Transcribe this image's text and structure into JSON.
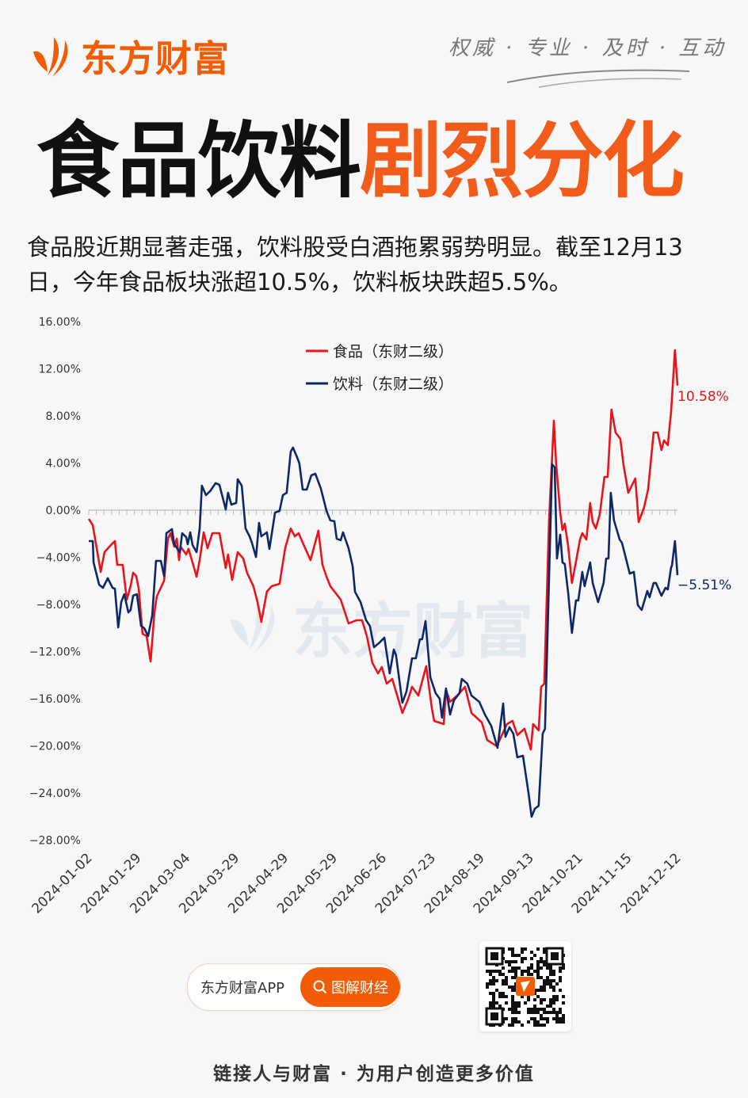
{
  "header": {
    "brand": "东方财富",
    "slogan": "权威 · 专业 · 及时 · 互动"
  },
  "title": {
    "part1": "食品饮料",
    "part2": "剧烈分化"
  },
  "subtitle": "食品股近期显著走强，饮料股受白酒拖累弱势明显。截至12月13日，今年食品板块涨超10.5%，饮料板块跌超5.5%。",
  "watermark": "东方财富",
  "footer": {
    "app_label": "东方财富APP",
    "search_label": "图解财经",
    "tagline": "链接人与财富 · 为用户创造更多价值"
  },
  "colors": {
    "accent": "#f25c05",
    "food": "#e8141b",
    "beverage": "#0d2868"
  },
  "chart_data": {
    "type": "line",
    "title": "",
    "xlabel": "",
    "ylabel": "",
    "ylim": [
      -28,
      16
    ],
    "xlim": [
      0,
      232
    ],
    "x_unit": "trading-day index since 2024-01-02",
    "y_ticks": [
      "16.00%",
      "12.00%",
      "8.00%",
      "4.00%",
      "0.00%",
      "−4.00%",
      "−8.00%",
      "−12.00%",
      "−16.00%",
      "−20.00%",
      "−24.00%",
      "−28.00%"
    ],
    "y_tick_values": [
      16,
      12,
      8,
      4,
      0,
      -4,
      -8,
      -12,
      -16,
      -20,
      -24,
      -28
    ],
    "x_ticks": [
      "2024-01-02",
      "2024-01-29",
      "2024-03-04",
      "2024-03-29",
      "2024-04-29",
      "2024-05-29",
      "2024-06-26",
      "2024-07-23",
      "2024-08-19",
      "2024-09-13",
      "2024-10-21",
      "2024-11-15",
      "2024-12-12"
    ],
    "legend_position": "top-center",
    "series": [
      {
        "name": "食品（东财二级）",
        "end_label": "10.58%",
        "x": [
          0,
          1.6,
          4.7,
          6.2,
          8.7,
          10.3,
          11.2,
          13.4,
          15.0,
          16.5,
          17.5,
          18.7,
          19.7,
          21.2,
          22.8,
          24.4,
          25.9,
          26.8,
          29.7,
          31.2,
          32.2,
          33.7,
          34.7,
          35.6,
          36.2,
          38.4,
          39.3,
          40.9,
          42.5,
          43.7,
          45.3,
          46.8,
          48.7,
          51.5,
          54.0,
          54.9,
          56.5,
          58.7,
          60.9,
          62.4,
          64.9,
          66.5,
          68.0,
          70.2,
          72.1,
          75.2,
          77.4,
          79.6,
          81.2,
          82.7,
          84.6,
          87.4,
          90.5,
          92.1,
          93.7,
          95.2,
          99.3,
          102.4,
          105.5,
          107.7,
          109.6,
          111.8,
          114.0,
          115.5,
          117.4,
          119.6,
          123.6,
          125.8,
          127.4,
          129.9,
          133.0,
          135.2,
          136.1,
          139.9,
          140.8,
          142.4,
          145.2,
          148.3,
          150.8,
          154.9,
          157.0,
          160.8,
          164.8,
          167.0,
          168.9,
          171.7,
          174.2,
          175.1,
          177.3,
          178.3,
          179.5,
          181.4,
          183.3,
          184.2,
          185.8,
          186.7,
          187.6,
          188.9,
          190.4,
          192.0,
          193.6,
          194.5,
          196.1,
          197.6,
          198.6,
          199.8,
          201.4,
          203.2,
          204.5,
          206.0,
          207.6,
          209.5,
          210.7,
          212.6,
          215.4,
          216.7,
          218.8,
          220.4,
          222.6,
          224.2,
          225.7,
          226.7,
          228.2,
          229.5,
          231.0,
          232.0
        ],
        "values": [
          -0.74,
          -1.28,
          -5.24,
          -3.56,
          -2.96,
          -2.62,
          -4.64,
          -4.64,
          -7.6,
          -6.45,
          -5.31,
          -5.58,
          -6.66,
          -10.49,
          -10.69,
          -12.84,
          -8.67,
          -7.33,
          -5.98,
          -2.42,
          -1.95,
          -3.09,
          -2.42,
          -4.24,
          -3.09,
          -3.76,
          -3.29,
          -4.44,
          -5.65,
          -4.24,
          -1.88,
          -3.23,
          -1.95,
          -1.95,
          -4.91,
          -3.76,
          -5.92,
          -3.56,
          -4.1,
          -5.31,
          -6.45,
          -7.8,
          -9.48,
          -6.92,
          -6.45,
          -6.25,
          -3.23,
          -1.55,
          -2.22,
          -1.95,
          -2.89,
          -4.24,
          -1.75,
          -4.64,
          -5.65,
          -6.45,
          -7.6,
          -9.61,
          -9.34,
          -9.34,
          -10.69,
          -12.97,
          -13.85,
          -13.31,
          -14.72,
          -14.32,
          -17.21,
          -16.07,
          -14.99,
          -15.73,
          -13.24,
          -16.81,
          -17.88,
          -18.15,
          -15.26,
          -16.27,
          -15.73,
          -14.99,
          -17.21,
          -18.02,
          -19.5,
          -20.03,
          -18.15,
          -17.88,
          -19.09,
          -18.55,
          -20.3,
          -18.15,
          -18.69,
          -14.99,
          -14.72,
          -0.87,
          7.6,
          3.9,
          -0.2,
          -1.68,
          -1.14,
          -3.03,
          -6.18,
          -4.37,
          -2.49,
          -1.95,
          -2.49,
          0.61,
          -1.01,
          -1.55,
          -0.34,
          2.82,
          2.82,
          8.54,
          6.59,
          6.05,
          3.9,
          1.48,
          2.69,
          -1.01,
          0.2,
          1.75,
          6.59,
          6.59,
          5.11,
          5.92,
          5.51,
          8.4,
          13.58,
          10.58
        ]
      },
      {
        "name": "饮料（东财二级）",
        "end_label": "−5.51%",
        "x": [
          0,
          1.6,
          1.9,
          4.1,
          5.6,
          7.5,
          9.4,
          10.3,
          11.6,
          12.8,
          14.0,
          15.6,
          16.5,
          17.5,
          19.0,
          20.6,
          21.9,
          23.4,
          25.0,
          26.5,
          28.4,
          29.7,
          30.6,
          32.8,
          33.7,
          35.9,
          36.8,
          38.4,
          39.0,
          40.0,
          40.9,
          42.5,
          43.7,
          44.6,
          46.2,
          47.8,
          50.0,
          51.5,
          54.0,
          54.9,
          56.2,
          58.1,
          58.7,
          60.3,
          61.8,
          63.4,
          64.3,
          65.9,
          67.1,
          68.0,
          70.2,
          71.2,
          73.4,
          75.2,
          76.5,
          78.0,
          79.6,
          80.5,
          82.1,
          83.0,
          84.3,
          85.9,
          87.7,
          89.3,
          91.5,
          93.7,
          95.2,
          96.8,
          97.7,
          99.3,
          100.2,
          102.4,
          104.0,
          104.9,
          107.1,
          109.3,
          110.8,
          112.4,
          114.3,
          116.5,
          118.6,
          120.2,
          121.1,
          123.6,
          125.2,
          127.4,
          128.9,
          130.5,
          131.4,
          132.7,
          134.6,
          136.7,
          138.3,
          139.2,
          140.8,
          142.4,
          143.9,
          146.1,
          147.0,
          149.2,
          150.8,
          153.9,
          156.1,
          158.6,
          161.1,
          163.3,
          164.2,
          165.8,
          167.3,
          168.9,
          171.1,
          173.3,
          174.5,
          175.8,
          177.3,
          178.9,
          179.8,
          182.6,
          183.6,
          184.5,
          185.8,
          186.7,
          187.6,
          188.9,
          190.4,
          192.0,
          192.9,
          194.5,
          195.4,
          197.6,
          198.6,
          200.7,
          202.9,
          203.9,
          204.8,
          205.7,
          207.0,
          209.2,
          210.1,
          213.2,
          214.8,
          216.4,
          217.9,
          220.1,
          221.0,
          222.6,
          223.5,
          225.7,
          227.3,
          228.2,
          229.5,
          229.8,
          231.0,
          232.0
        ],
        "values": [
          -2.62,
          -2.62,
          -4.44,
          -6.32,
          -6.59,
          -5.78,
          -6.59,
          -6.66,
          -9.95,
          -7.8,
          -7.13,
          -8.67,
          -8.47,
          -7.26,
          -7.13,
          -9.82,
          -10.02,
          -10.69,
          -8.94,
          -4.3,
          -4.3,
          -5.58,
          -1.95,
          -1.61,
          -2.89,
          -3.56,
          -1.95,
          -2.29,
          -2.89,
          -1.88,
          -2.96,
          -3.56,
          -1.55,
          2.08,
          1.28,
          1.61,
          2.29,
          2.15,
          0.07,
          1.48,
          0.47,
          0.61,
          2.62,
          2.08,
          -1.55,
          -2.22,
          -2.76,
          -3.97,
          -1.08,
          -2.22,
          -1.88,
          -3.29,
          -0.2,
          -0.07,
          1.28,
          1.48,
          4.97,
          5.31,
          4.5,
          3.97,
          1.75,
          1.75,
          2.96,
          3.09,
          1.82,
          -0.07,
          -0.87,
          -0.94,
          -2.42,
          -2.55,
          -1.88,
          -3.23,
          -4.77,
          -6.92,
          -7.8,
          -9.34,
          -9.82,
          -11.63,
          -11.29,
          -10.82,
          -13.85,
          -11.83,
          -12.3,
          -16.34,
          -15.39,
          -12.57,
          -12.57,
          -10.96,
          -10.96,
          -9.41,
          -14.18,
          -15.53,
          -16.0,
          -17.61,
          -15.13,
          -17.34,
          -16.13,
          -15.53,
          -14.32,
          -14.72,
          -15.73,
          -16.27,
          -17.34,
          -18.29,
          -20.17,
          -16.4,
          -19.23,
          -18.42,
          -18.96,
          -20.97,
          -20.84,
          -24.0,
          -26.02,
          -25.34,
          -25.08,
          -18.96,
          -18.55,
          3.9,
          3.63,
          -4.1,
          -2.08,
          -4.44,
          -4.57,
          -6.99,
          -10.42,
          -7.66,
          -7.66,
          -5.24,
          -6.45,
          -4.44,
          -6.18,
          -7.8,
          -6.18,
          -4.1,
          -4.1,
          1.48,
          -0.87,
          -2.49,
          -2.76,
          -5.38,
          -5.24,
          -8.07,
          -8.47,
          -6.86,
          -7.39,
          -6.18,
          -6.18,
          -7.26,
          -6.59,
          -6.72,
          -4.84,
          -4.71,
          -2.62,
          -5.51
        ]
      }
    ]
  }
}
